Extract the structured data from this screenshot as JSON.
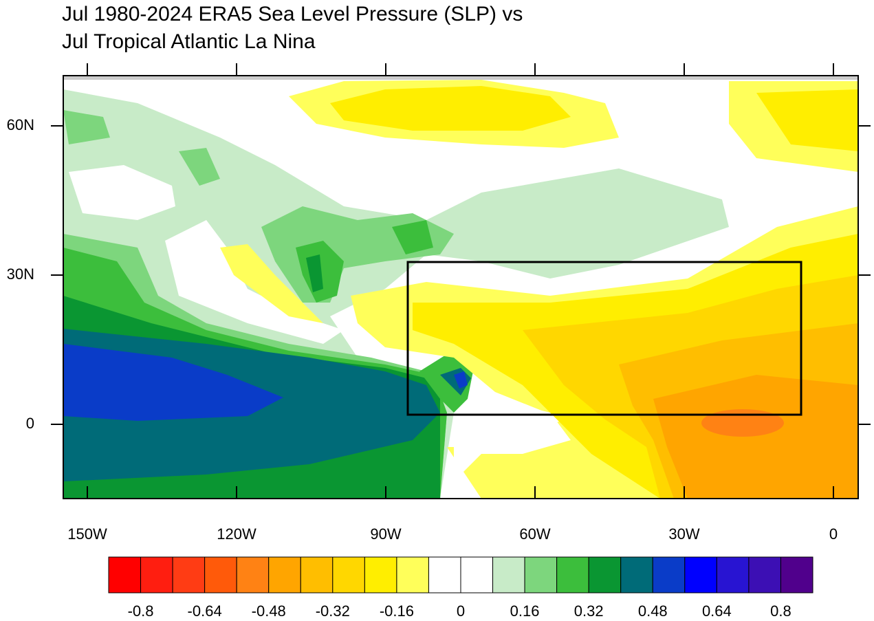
{
  "map": {
    "title_lines": [
      "Jul 1980-2024 ERA5 Sea Level Pressure (SLP) vs",
      "Jul Tropical Atlantic La Nina"
    ],
    "xticks": [
      {
        "value": -150,
        "label": "150W"
      },
      {
        "value": -120,
        "label": "120W"
      },
      {
        "value": -90,
        "label": "90W"
      },
      {
        "value": -60,
        "label": "60W"
      },
      {
        "value": -30,
        "label": "30W"
      },
      {
        "value": 0,
        "label": "0"
      }
    ],
    "yticks": [
      {
        "value": 60,
        "label": "60N"
      },
      {
        "value": 30,
        "label": "30N"
      },
      0
    ],
    "colorbar": {
      "colors": [
        "#ff0000",
        "#ff1e10",
        "#ff3c14",
        "#ff5a0a",
        "#ff8214",
        "#ffa500",
        "#ffbe00",
        "#ffd700",
        "#ffee00",
        "#ffff5a",
        "#ffffff",
        "#ffffff",
        "#c8ebc8",
        "#7dd67d",
        "#3cbe3c",
        "#0a9632",
        "#006b78",
        "#0a3cc8",
        "#0000ff",
        "#2814d2",
        "#3c0fb4",
        "#50008c"
      ],
      "levels": [
        -0.8,
        -0.64,
        -0.48,
        -0.32,
        -0.16,
        0,
        0.16,
        0.32,
        0.48,
        0.64,
        0.8
      ]
    }
  }
}
